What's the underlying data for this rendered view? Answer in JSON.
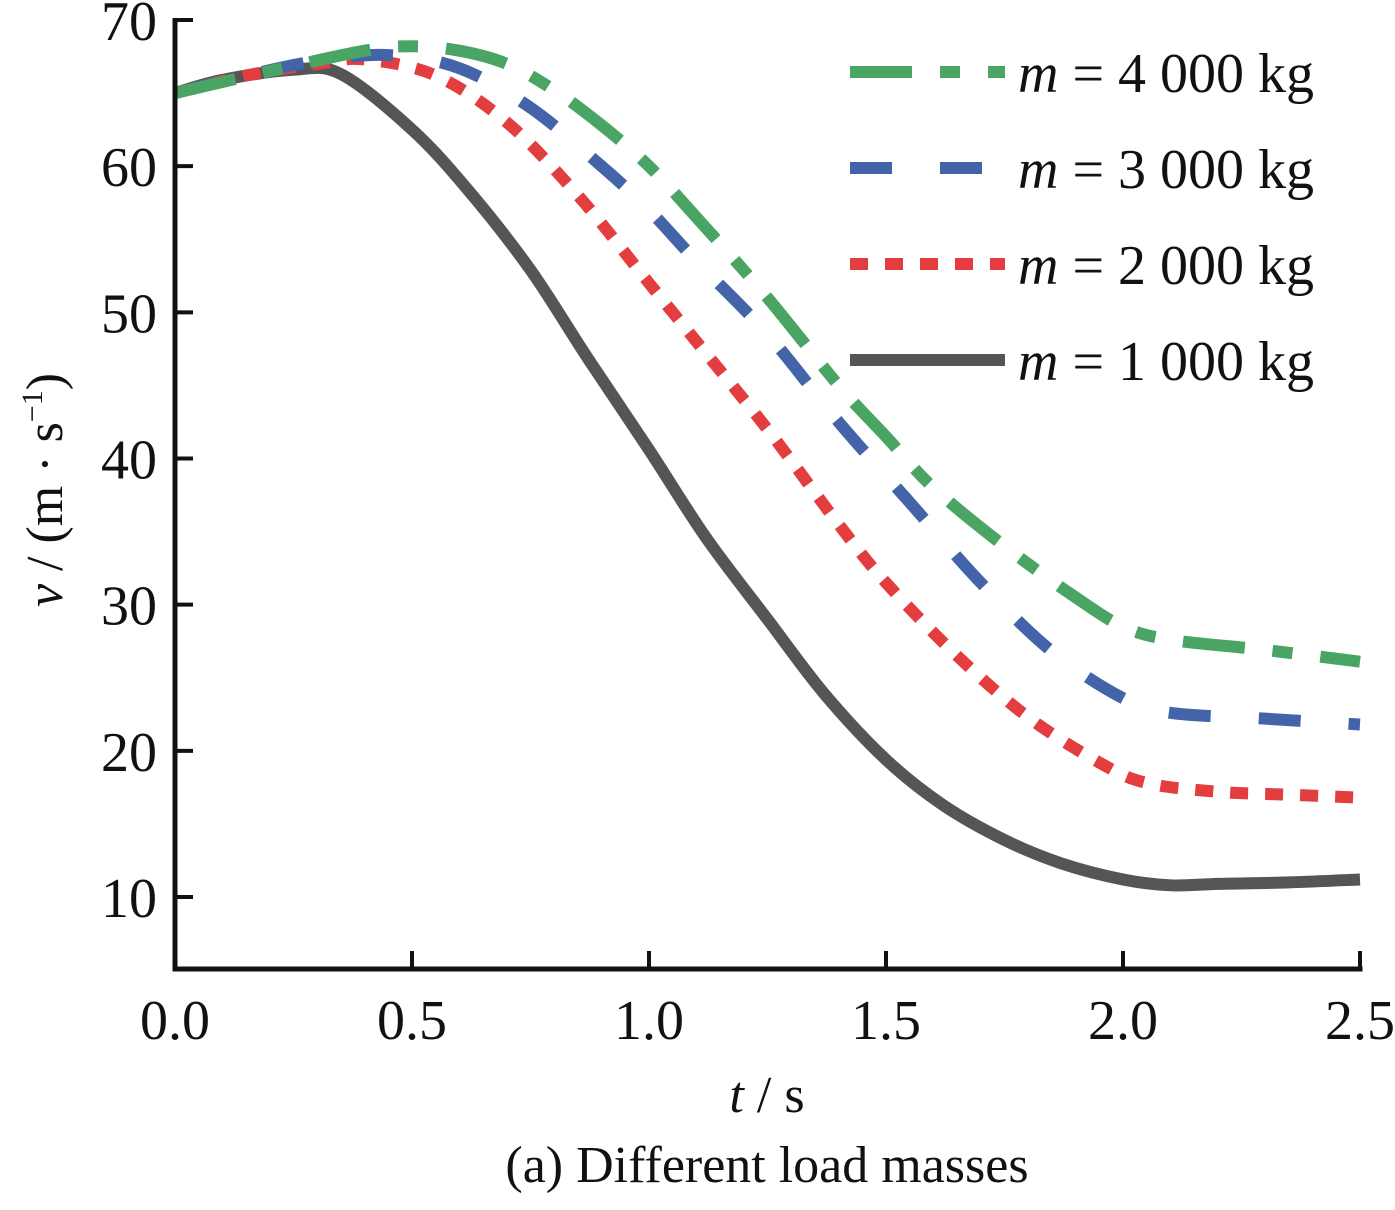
{
  "chart_data": {
    "type": "line",
    "title": "",
    "caption": "(a)  Different load masses",
    "xlabel": {
      "var": "t",
      "unit": " / s"
    },
    "ylabel": {
      "var": "v",
      "unit": " / (m · s",
      "sup": "−1",
      "close": ")"
    },
    "xlim": [
      0,
      2.5
    ],
    "ylim": [
      5,
      70
    ],
    "xticks": [
      0.0,
      0.5,
      1.0,
      1.5,
      2.0,
      2.5
    ],
    "xtick_labels": [
      "0.0",
      "0.5",
      "1.0",
      "1.5",
      "2.0",
      "2.5"
    ],
    "yticks": [
      10,
      20,
      30,
      40,
      50,
      60,
      70
    ],
    "ytick_labels": [
      "10",
      "20",
      "30",
      "40",
      "50",
      "60",
      "70"
    ],
    "grid": false,
    "legend_position": "top-right",
    "series": [
      {
        "name": "m = 4 000 kg",
        "legend_var": "m",
        "legend_rest": " = 4 000 kg",
        "color": "#4aa564",
        "style": "dash-dot",
        "x": [
          0,
          0.2,
          0.4,
          0.5,
          0.6,
          0.7,
          0.8,
          0.9,
          1.0,
          1.1,
          1.25,
          1.4,
          1.5,
          1.6,
          1.75,
          1.9,
          2.0,
          2.1,
          2.3,
          2.5
        ],
        "y": [
          65,
          66.5,
          67.9,
          68.2,
          67.9,
          67.0,
          65.2,
          62.8,
          60.0,
          56.5,
          51.0,
          45.0,
          41.5,
          38.0,
          34.0,
          30.5,
          28.5,
          27.6,
          26.9,
          26.1
        ]
      },
      {
        "name": "m = 3 000 kg",
        "legend_var": "m",
        "legend_rest": " = 3 000 kg",
        "color": "#4364a8",
        "style": "dashed",
        "x": [
          0,
          0.15,
          0.3,
          0.45,
          0.6,
          0.75,
          0.9,
          1.0,
          1.1,
          1.25,
          1.4,
          1.55,
          1.7,
          1.85,
          2.0,
          2.1,
          2.3,
          2.5
        ],
        "y": [
          65,
          66.2,
          67.2,
          67.6,
          66.7,
          64.0,
          60.0,
          57.0,
          53.5,
          48.5,
          42.5,
          37.0,
          31.5,
          26.8,
          23.6,
          22.6,
          22.2,
          21.8
        ]
      },
      {
        "name": "m = 2 000 kg",
        "legend_var": "m",
        "legend_rest": " = 2 000 kg",
        "color": "#e43d40",
        "style": "dotted",
        "x": [
          0,
          0.15,
          0.3,
          0.4,
          0.55,
          0.7,
          0.85,
          1.0,
          1.1,
          1.25,
          1.4,
          1.5,
          1.65,
          1.8,
          1.95,
          2.05,
          2.2,
          2.35,
          2.5
        ],
        "y": [
          65,
          66.2,
          67.0,
          67.3,
          66.2,
          63.0,
          58.0,
          52.0,
          48.0,
          42.0,
          35.5,
          31.5,
          26.5,
          22.3,
          19.2,
          17.8,
          17.2,
          17.0,
          16.8
        ]
      },
      {
        "name": "m = 1 000 kg",
        "legend_var": "m",
        "legend_rest": " = 1 000 kg",
        "color": "#555555",
        "style": "solid",
        "x": [
          0,
          0.1,
          0.25,
          0.35,
          0.5,
          0.62,
          0.75,
          0.87,
          1.0,
          1.12,
          1.25,
          1.37,
          1.5,
          1.62,
          1.75,
          1.87,
          2.0,
          2.1,
          2.2,
          2.35,
          2.5
        ],
        "y": [
          65,
          65.9,
          66.6,
          66.3,
          62.5,
          58.3,
          52.9,
          46.9,
          40.6,
          34.6,
          29.0,
          23.9,
          19.4,
          16.3,
          13.9,
          12.3,
          11.2,
          10.8,
          10.9,
          11.0,
          11.2
        ]
      }
    ]
  }
}
